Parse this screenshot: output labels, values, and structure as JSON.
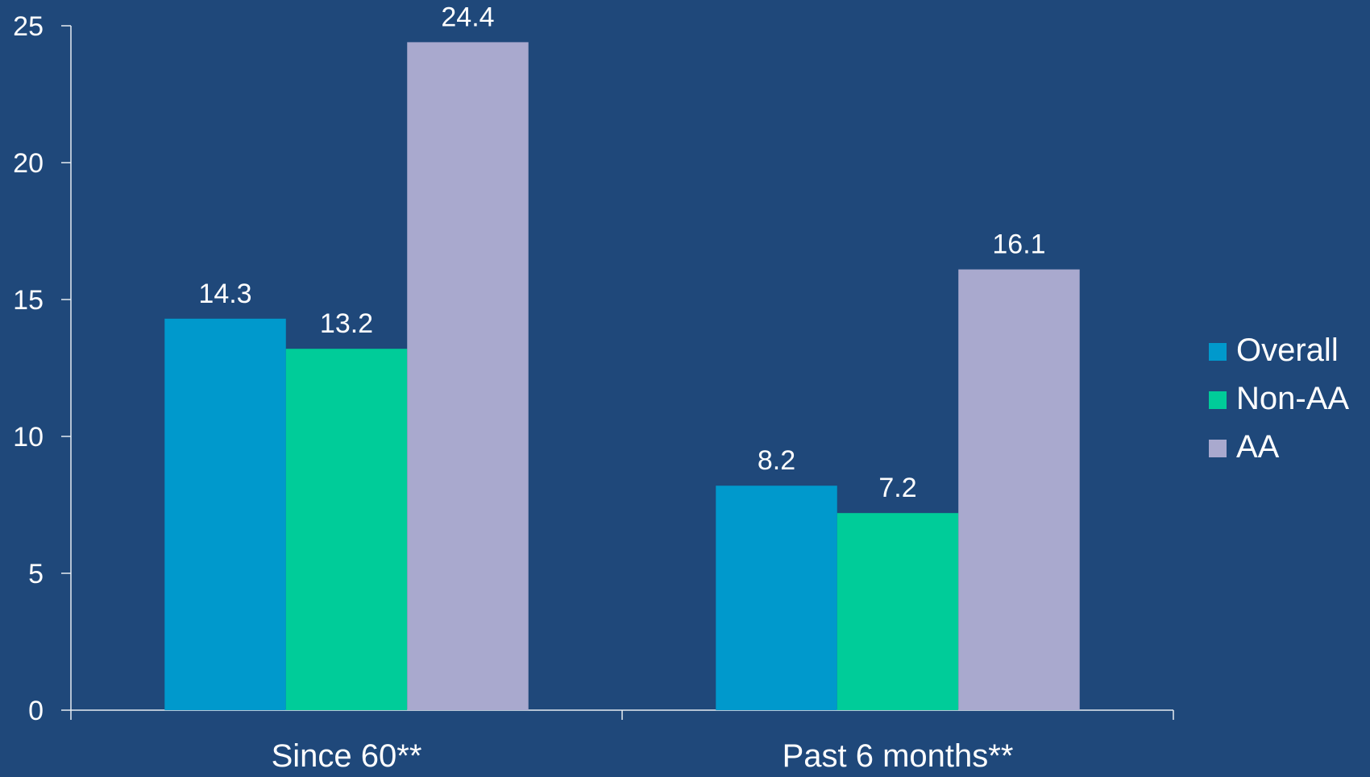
{
  "colors": {
    "background": "#1f487a",
    "axis": "#e6ecf2",
    "text": "#ffffff"
  },
  "legend": {
    "placement": "right",
    "items": [
      {
        "label": "Overall",
        "color": "#0099cc"
      },
      {
        "label": "Non-AA",
        "color": "#00cc99"
      },
      {
        "label": "AA",
        "color": "#a9a9ce"
      }
    ]
  },
  "chart_data": {
    "type": "bar",
    "title": "",
    "xlabel": "",
    "ylabel": "",
    "categories": [
      "Since 60**",
      "Past 6 months**"
    ],
    "series": [
      {
        "name": "Overall",
        "color": "#0099cc",
        "values": [
          14.3,
          8.2
        ],
        "labels": [
          "14.3",
          "8.2"
        ]
      },
      {
        "name": "Non-AA",
        "color": "#00cc99",
        "values": [
          13.2,
          7.2
        ],
        "labels": [
          "13.2",
          "7.2"
        ]
      },
      {
        "name": "AA",
        "color": "#a9a9ce",
        "values": [
          24.4,
          16.1
        ],
        "labels": [
          "24.4",
          "16.1"
        ]
      }
    ],
    "ylim": [
      0,
      25
    ],
    "yticks": [
      0,
      5,
      10,
      15,
      20,
      25
    ],
    "ytick_labels": [
      "0",
      "5",
      "10",
      "15",
      "20",
      "25"
    ],
    "grid": false,
    "data_labels": true
  }
}
